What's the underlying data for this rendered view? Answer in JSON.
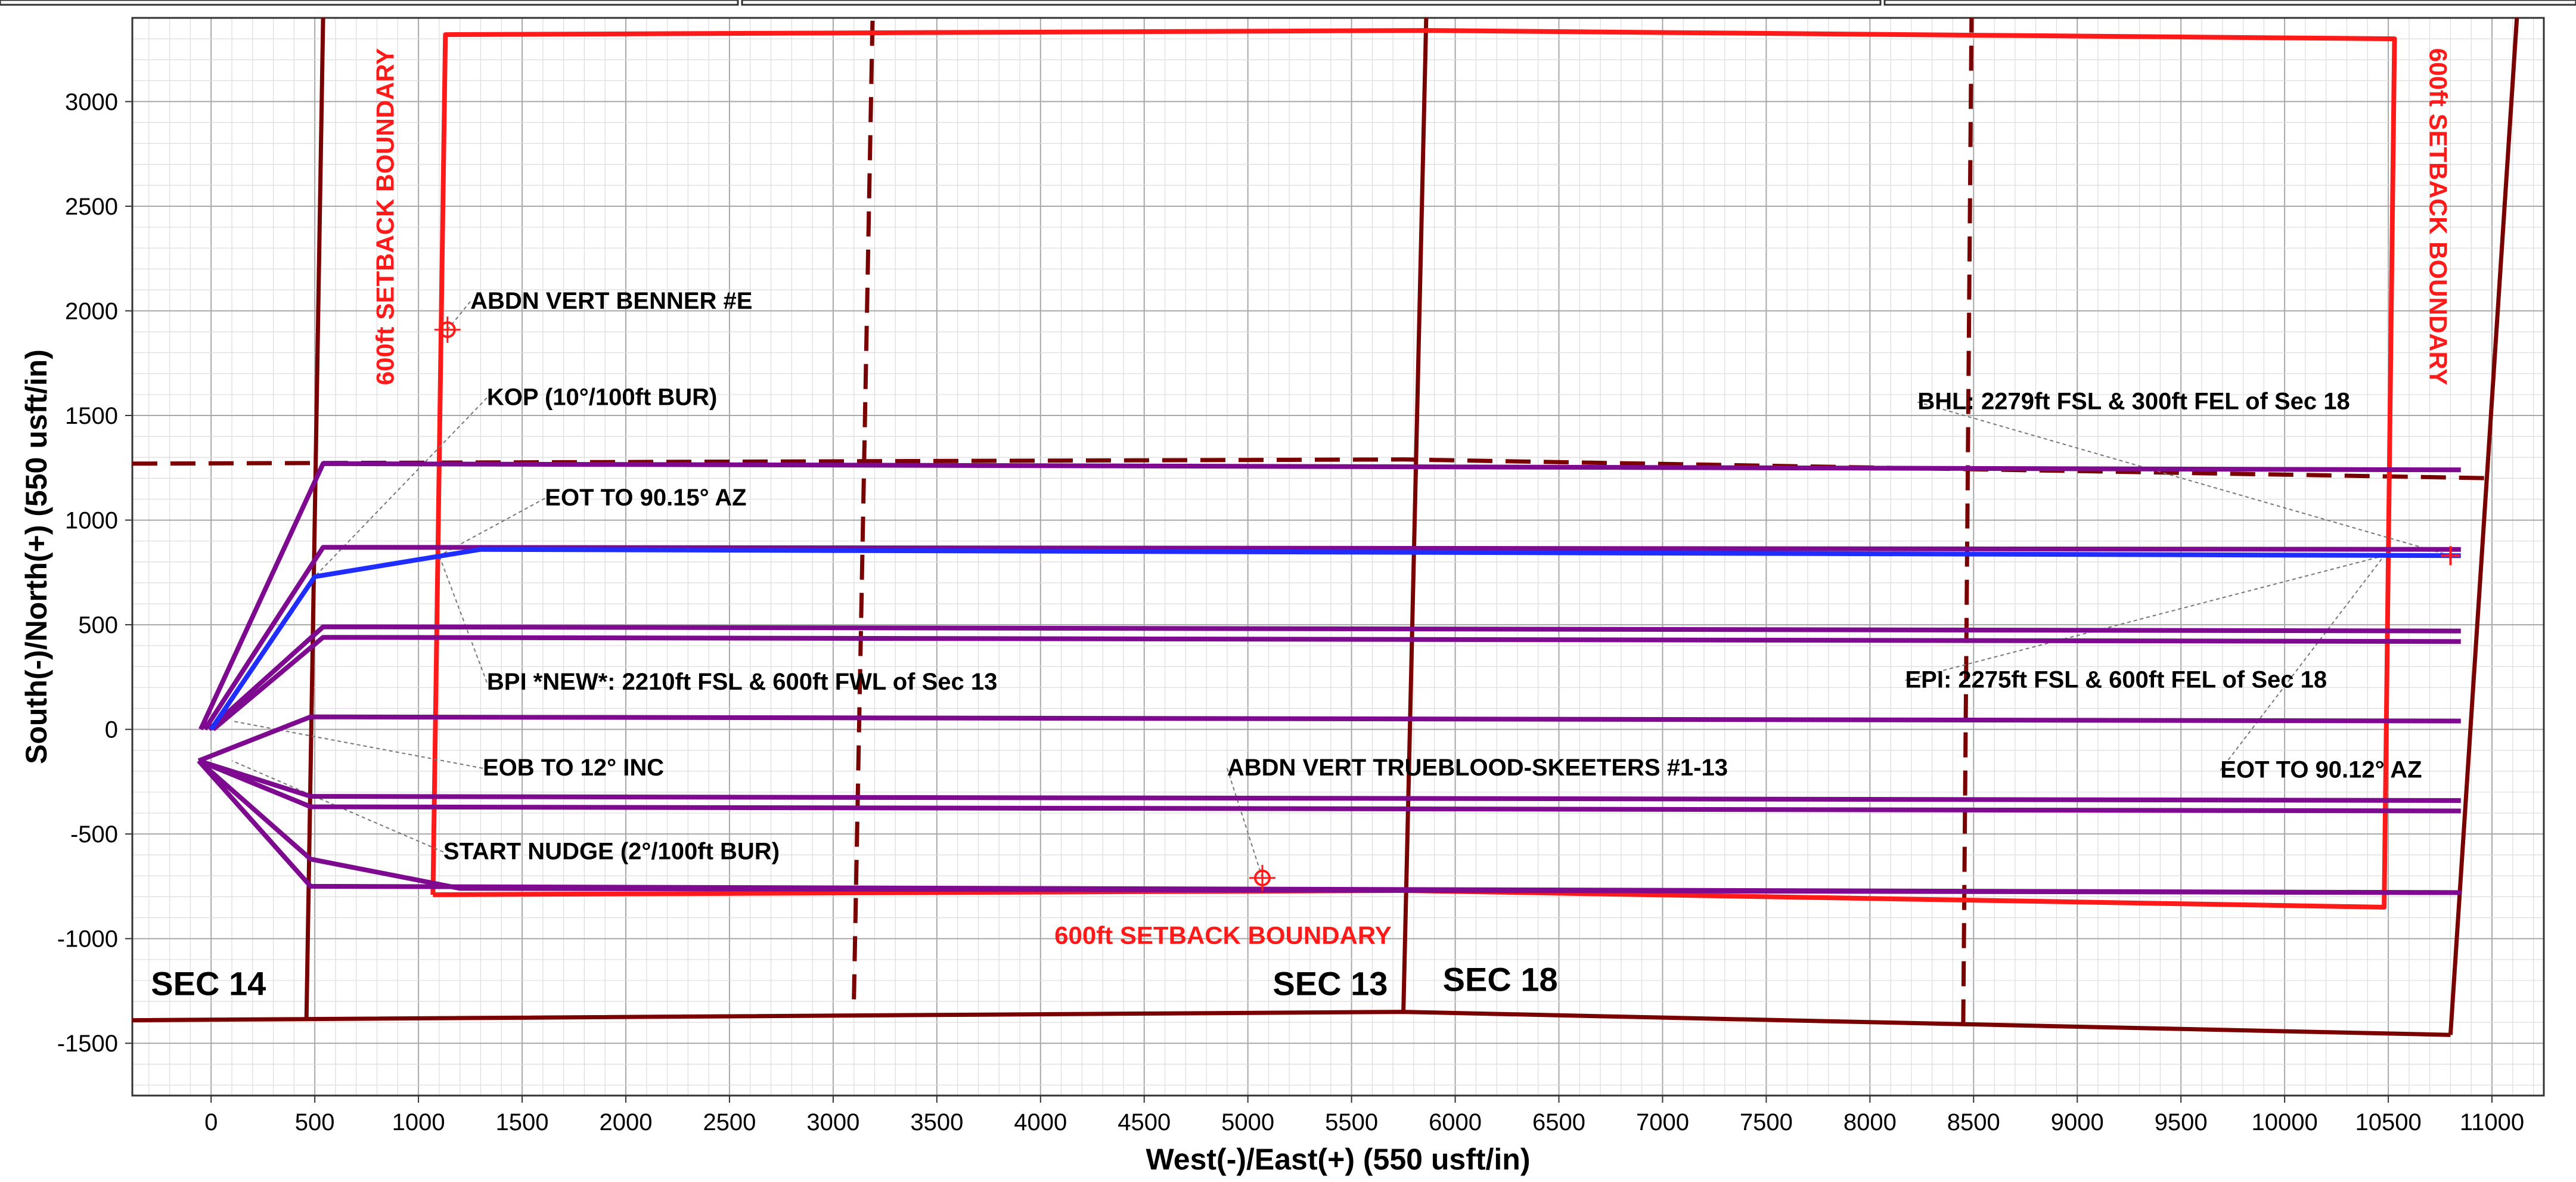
{
  "chart_data": {
    "type": "line",
    "xlabel": "West(-)/East(+) (550 usft/in)",
    "ylabel": "South(-)/North(+) (550 usft/in)",
    "xlim": [
      -380,
      11250
    ],
    "ylim": [
      -1750,
      3400
    ],
    "xticks": [
      0,
      500,
      1000,
      1500,
      2000,
      2500,
      3000,
      3500,
      4000,
      4500,
      5000,
      5500,
      6000,
      6500,
      7000,
      7500,
      8000,
      8500,
      9000,
      9500,
      10000,
      10500,
      11000
    ],
    "yticks": [
      -1500,
      -1000,
      -500,
      0,
      500,
      1000,
      1500,
      2000,
      2500,
      3000
    ],
    "grid": true,
    "colors": {
      "section_line": "#7a0000",
      "setback": "#ff1a1a",
      "wellbore": "#7d0a8f",
      "plan": "#1f2dff",
      "leader": "#777777"
    },
    "section_lines": [
      {
        "style": "solid",
        "points": [
          [
            -380,
            -1390
          ],
          [
            5750,
            -1350
          ],
          [
            10800,
            -1460
          ]
        ]
      },
      {
        "style": "solid",
        "points": [
          [
            460,
            -1380
          ],
          [
            540,
            3400
          ]
        ]
      },
      {
        "style": "solid",
        "points": [
          [
            5750,
            -1350
          ],
          [
            5860,
            3400
          ]
        ]
      },
      {
        "style": "solid",
        "points": [
          [
            10800,
            -1460
          ],
          [
            11120,
            3400
          ]
        ]
      },
      {
        "style": "dashed",
        "points": [
          [
            -380,
            1270
          ],
          [
            5750,
            1290
          ],
          [
            11000,
            1200
          ]
        ]
      },
      {
        "style": "dashed",
        "points": [
          [
            3100,
            -1290
          ],
          [
            3190,
            3400
          ]
        ]
      },
      {
        "style": "dashed",
        "points": [
          [
            8450,
            -1410
          ],
          [
            8490,
            3400
          ]
        ]
      }
    ],
    "setback_boundary": [
      [
        1070,
        -790
      ],
      [
        1130,
        3320
      ],
      [
        5850,
        3340
      ],
      [
        10530,
        3300
      ],
      [
        10480,
        -850
      ],
      [
        5750,
        -770
      ],
      [
        1070,
        -790
      ]
    ],
    "wellbores": [
      {
        "points": [
          [
            -50,
            0
          ],
          [
            540,
            1270
          ],
          [
            10850,
            1240
          ]
        ]
      },
      {
        "points": [
          [
            -30,
            0
          ],
          [
            540,
            870
          ],
          [
            10850,
            860
          ]
        ]
      },
      {
        "points": [
          [
            -10,
            0
          ],
          [
            540,
            490
          ],
          [
            10850,
            470
          ]
        ]
      },
      {
        "points": [
          [
            10,
            0
          ],
          [
            540,
            440
          ],
          [
            10850,
            420
          ]
        ]
      },
      {
        "points": [
          [
            -60,
            -150
          ],
          [
            480,
            60
          ],
          [
            10850,
            40
          ]
        ]
      },
      {
        "points": [
          [
            -60,
            -150
          ],
          [
            480,
            -320
          ],
          [
            10850,
            -340
          ]
        ]
      },
      {
        "points": [
          [
            -60,
            -150
          ],
          [
            480,
            -370
          ],
          [
            10850,
            -390
          ]
        ]
      },
      {
        "points": [
          [
            -60,
            -150
          ],
          [
            480,
            -620
          ],
          [
            1200,
            -760
          ],
          [
            10850,
            -780
          ]
        ]
      },
      {
        "points": [
          [
            -60,
            -150
          ],
          [
            480,
            -750
          ],
          [
            10850,
            -780
          ]
        ]
      }
    ],
    "plan_path": {
      "points": [
        [
          0,
          0
        ],
        [
          500,
          730
        ],
        [
          1300,
          860
        ],
        [
          10850,
          830
        ]
      ]
    },
    "markers": [
      {
        "name": "ABDN VERT BENNER #E",
        "x": 1140,
        "y": 1910
      },
      {
        "name": "ABDN VERT TRUEBLOOD-SKEETERS #1-13",
        "x": 5070,
        "y": -710
      },
      {
        "name": "BHL",
        "x": 10800,
        "y": 830
      }
    ],
    "annotations": [
      {
        "text": "ABDN VERT BENNER #E",
        "x": 1250,
        "y": 2010,
        "target": [
          1140,
          1910
        ]
      },
      {
        "text": "KOP (10°/100ft BUR)",
        "x": 1330,
        "y": 1550,
        "target": [
          500,
          730
        ]
      },
      {
        "text": "EOT TO 90.15° AZ",
        "x": 1610,
        "y": 1070,
        "target": [
          1100,
          830
        ]
      },
      {
        "text": "BPI *NEW*: 2210ft FSL & 600ft FWL of Sec 13",
        "x": 1330,
        "y": 190,
        "target": [
          1100,
          830
        ]
      },
      {
        "text": "EOB TO 12° INC",
        "x": 1310,
        "y": -220,
        "target": [
          100,
          40
        ]
      },
      {
        "text": "START NUDGE (2°/100ft BUR)",
        "x": 1120,
        "y": -620,
        "target": [
          100,
          -150
        ]
      },
      {
        "text": "ABDN VERT TRUEBLOOD-SKEETERS #1-13",
        "x": 4900,
        "y": -220,
        "target": [
          5070,
          -710
        ]
      },
      {
        "text": "BHL: 2279ft FSL & 300ft FEL of Sec 18",
        "x": 8230,
        "y": 1530,
        "target": [
          10800,
          830
        ]
      },
      {
        "text": "EPI: 2275ft FSL & 600ft FEL of Sec 18",
        "x": 8170,
        "y": 200,
        "target": [
          10480,
          830
        ]
      },
      {
        "text": "EOT TO 90.12° AZ",
        "x": 9690,
        "y": -230,
        "target": [
          10480,
          830
        ]
      }
    ],
    "setback_labels": [
      {
        "text": "600ft SETBACK BOUNDARY",
        "x": 880,
        "y": 2450,
        "rotate": -90
      },
      {
        "text": "600ft SETBACK BOUNDARY",
        "x": 10700,
        "y": 2450,
        "rotate": 90
      },
      {
        "text": "600ft SETBACK BOUNDARY",
        "x": 4880,
        "y": -1025,
        "rotate": 0
      }
    ],
    "section_labels": [
      {
        "text": "SEC 14",
        "x": -290,
        "y": -1270
      },
      {
        "text": "SEC 13",
        "x": 5120,
        "y": -1270
      },
      {
        "text": "SEC 18",
        "x": 5940,
        "y": -1250
      }
    ]
  }
}
